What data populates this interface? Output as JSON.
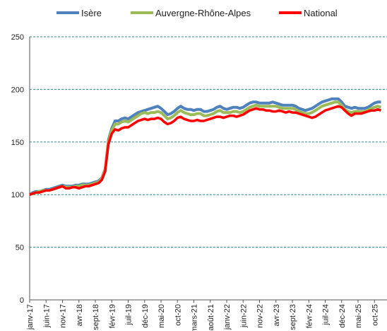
{
  "chart_data": {
    "type": "line",
    "categories": [
      "janv-17",
      null,
      null,
      null,
      null,
      "juin-17",
      null,
      null,
      null,
      null,
      "nov-17",
      null,
      null,
      null,
      null,
      "avr-18",
      null,
      null,
      null,
      null,
      "sept-18",
      null,
      null,
      null,
      null,
      "févr-19",
      null,
      null,
      null,
      null,
      "juil-19",
      null,
      null,
      null,
      null,
      "déc-19",
      null,
      null,
      null,
      null,
      "mai-20",
      null,
      null,
      null,
      null,
      "oct-20",
      null,
      null,
      null,
      null,
      "mars-21",
      null,
      null,
      null,
      null,
      "août-21",
      null,
      null,
      null,
      null,
      "janv-22",
      null,
      null,
      null,
      null,
      "juin-22",
      null,
      null,
      null,
      null,
      "nov-22",
      null,
      null,
      null,
      null,
      "avr-23",
      null,
      null,
      null,
      null,
      "sept-23",
      null,
      null,
      null,
      null,
      "févr-24",
      null,
      null,
      null,
      null,
      "juil-24",
      null,
      null,
      null,
      null,
      "déc-24",
      null,
      null,
      null,
      null,
      "mai-25",
      null,
      null,
      null,
      null,
      "oct-25",
      null,
      null
    ],
    "series": [
      {
        "name": "Isère",
        "color": "#4f81bd",
        "values": [
          100,
          102,
          103,
          103,
          104,
          105,
          105,
          106,
          107,
          108,
          109,
          108,
          108,
          108,
          109,
          109,
          110,
          110,
          110,
          111,
          112,
          113,
          116,
          124,
          152,
          163,
          170,
          170,
          172,
          173,
          172,
          174,
          176,
          178,
          179,
          180,
          181,
          182,
          183,
          184,
          182,
          179,
          176,
          177,
          179,
          182,
          184,
          182,
          181,
          181,
          180,
          181,
          181,
          179,
          179,
          180,
          181,
          183,
          184,
          182,
          181,
          182,
          183,
          183,
          182,
          183,
          185,
          187,
          188,
          188,
          187,
          187,
          187,
          187,
          188,
          187,
          186,
          185,
          185,
          185,
          185,
          184,
          182,
          181,
          180,
          181,
          182,
          184,
          186,
          188,
          189,
          190,
          191,
          191,
          191,
          188,
          184,
          183,
          182,
          183,
          182,
          182,
          182,
          183,
          185,
          187,
          188,
          188
        ]
      },
      {
        "name": "Auvergne-Rhône-Alpes",
        "color": "#9bbb59",
        "values": [
          100,
          101,
          102,
          103,
          104,
          104,
          104,
          105,
          106,
          107,
          108,
          107,
          107,
          107,
          108,
          108,
          109,
          109,
          109,
          110,
          111,
          112,
          115,
          123,
          150,
          161,
          167,
          167,
          169,
          170,
          169,
          171,
          173,
          175,
          177,
          178,
          177,
          178,
          178,
          179,
          178,
          175,
          172,
          173,
          175,
          178,
          180,
          178,
          177,
          176,
          176,
          177,
          177,
          175,
          175,
          176,
          177,
          179,
          180,
          178,
          178,
          178,
          179,
          179,
          178,
          179,
          181,
          183,
          184,
          185,
          184,
          184,
          184,
          184,
          184,
          184,
          183,
          182,
          182,
          182,
          182,
          181,
          179,
          178,
          177,
          177,
          178,
          180,
          182,
          184,
          185,
          186,
          187,
          188,
          188,
          185,
          181,
          179,
          178,
          179,
          179,
          179,
          179,
          180,
          182,
          183,
          184,
          183
        ]
      },
      {
        "name": "National",
        "color": "#ff0000",
        "values": [
          100,
          101,
          102,
          102,
          103,
          104,
          104,
          105,
          106,
          107,
          108,
          106,
          106,
          107,
          107,
          106,
          107,
          108,
          108,
          109,
          110,
          111,
          114,
          122,
          148,
          158,
          162,
          161,
          163,
          164,
          164,
          166,
          168,
          170,
          171,
          172,
          171,
          172,
          172,
          173,
          172,
          169,
          167,
          168,
          170,
          173,
          174,
          172,
          171,
          170,
          170,
          171,
          170,
          170,
          171,
          172,
          173,
          174,
          174,
          173,
          174,
          175,
          175,
          174,
          175,
          176,
          178,
          180,
          181,
          182,
          181,
          181,
          180,
          180,
          179,
          179,
          180,
          179,
          178,
          179,
          178,
          178,
          177,
          176,
          175,
          174,
          173,
          174,
          176,
          178,
          180,
          181,
          182,
          183,
          184,
          183,
          180,
          177,
          175,
          177,
          177,
          177,
          178,
          179,
          180,
          180,
          181,
          180
        ]
      }
    ],
    "ylim": [
      0,
      250
    ],
    "yticks": [
      0,
      50,
      100,
      150,
      200,
      250
    ],
    "grid": true,
    "legend": "top"
  }
}
